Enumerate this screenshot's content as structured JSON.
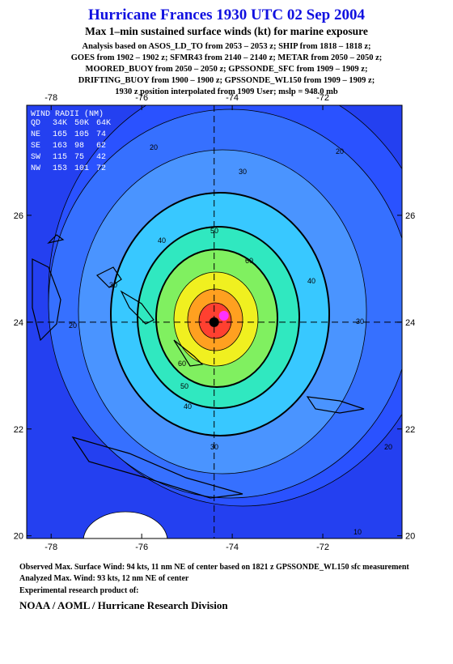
{
  "header": {
    "title": "Hurricane Frances 1930 UTC 02 Sep 2004",
    "subtitle": "Max 1–min sustained surface winds (kt) for marine exposure",
    "analysis_lines": [
      "Analysis based on  ASOS_LD_TO from 2053 – 2053 z;  SHIP from 1818 – 1818 z;",
      "GOES from 1902 – 1902 z;  SFMR43 from 2140 – 2140 z;  METAR from 2050 – 2050 z;",
      "MOORED_BUOY from 2050 – 2050 z;  GPSSONDE_SFC from 1909 – 1909 z;",
      "DRIFTING_BUOY from 1900 – 1900 z;  GPSSONDE_WL150 from 1909 – 1909 z;",
      "1930 z position interpolated from 1909 User; mslp = 948.0 mb"
    ]
  },
  "map": {
    "lon_ticks": [
      -78,
      -76,
      -74,
      -72
    ],
    "lat_ticks": [
      20,
      22,
      24,
      26
    ],
    "lonlim": [
      -78.54,
      -70.25
    ],
    "latlim": [
      19.95,
      28.06
    ],
    "center": {
      "lon": -74.4,
      "lat": 24
    },
    "contour_levels": [
      10,
      20,
      30,
      40,
      50,
      60,
      70,
      80,
      90
    ],
    "wind_radii": {
      "title": "WIND RADII (NM)",
      "columns": [
        "QD",
        "34K",
        "50K",
        "64K"
      ],
      "rows": [
        [
          "NE",
          165,
          105,
          74
        ],
        [
          "SE",
          163,
          98,
          62
        ],
        [
          "SW",
          115,
          75,
          42
        ],
        [
          "NW",
          153,
          101,
          72
        ]
      ]
    }
  },
  "footer": {
    "lines": [
      "Observed Max. Surface Wind: 94 kts, 11 nm NE of center based on 1821 z GPSSONDE_WL150 sfc measurement",
      "Analyzed Max. Wind: 93 kts, 12 nm NE of center",
      "Experimental research product of:"
    ],
    "org": "NOAA / AOML / Hurricane Research Division"
  }
}
